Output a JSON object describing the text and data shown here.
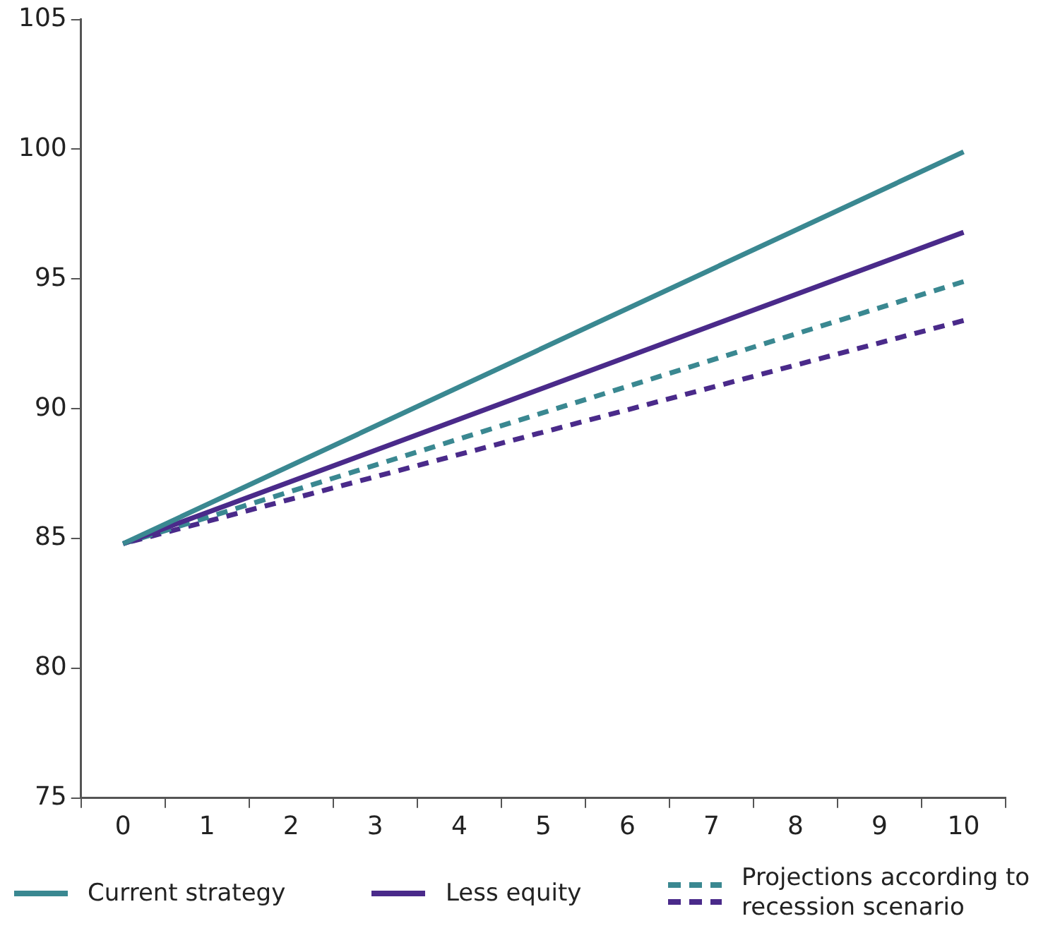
{
  "chart_data": {
    "type": "line",
    "categories": [
      "0",
      "1",
      "2",
      "3",
      "4",
      "5",
      "6",
      "7",
      "8",
      "9",
      "10"
    ],
    "series": [
      {
        "name": "Current strategy",
        "color": "#3a8891",
        "line_style": "solid",
        "values": [
          84.8,
          null,
          null,
          null,
          null,
          null,
          null,
          null,
          null,
          null,
          99.9
        ]
      },
      {
        "name": "Less equity",
        "color": "#4a2a8a",
        "line_style": "solid",
        "values": [
          84.8,
          null,
          null,
          null,
          null,
          null,
          null,
          null,
          null,
          null,
          96.8
        ]
      },
      {
        "name": "Projections according to recession scenario",
        "color": "#3a8891",
        "line_style": "dashed",
        "values": [
          84.8,
          null,
          null,
          null,
          null,
          null,
          null,
          null,
          null,
          null,
          94.9
        ]
      },
      {
        "color": "#4a2a8a",
        "line_style": "dashed",
        "values": [
          84.8,
          null,
          null,
          null,
          null,
          null,
          null,
          null,
          null,
          null,
          93.4
        ]
      }
    ],
    "ylim": [
      75,
      105
    ],
    "yticks": [
      75,
      80,
      85,
      90,
      95,
      100,
      105
    ],
    "grid": false,
    "legend": "bottom",
    "marker": "none"
  }
}
